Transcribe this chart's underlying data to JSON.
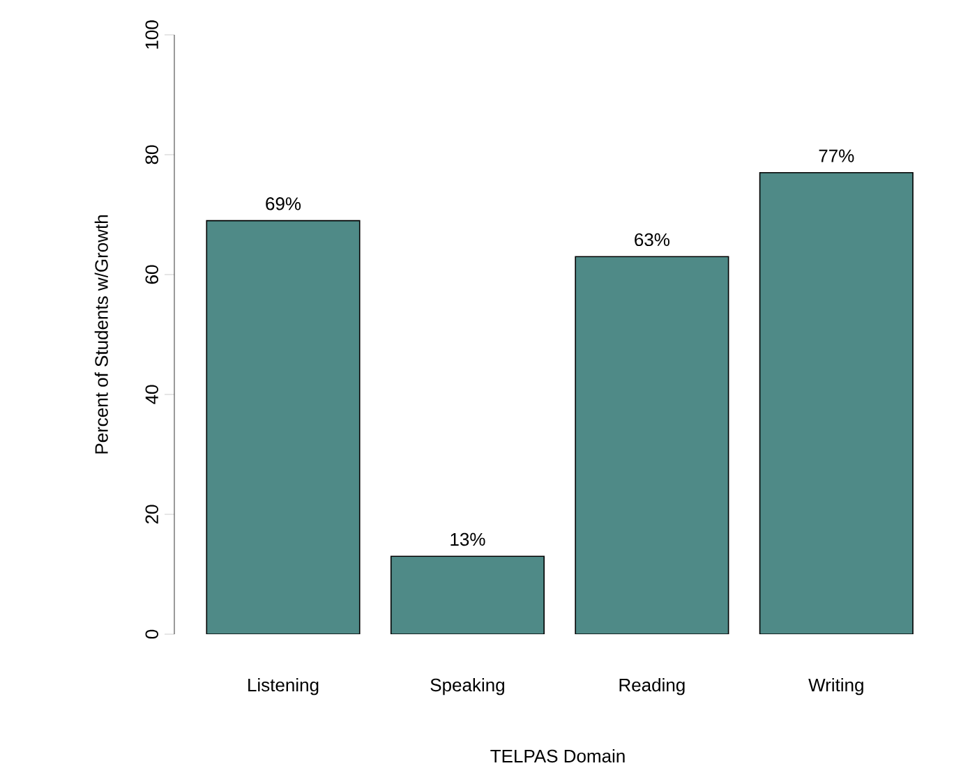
{
  "chart_data": {
    "type": "bar",
    "xlabel": "TELPAS Domain",
    "ylabel": "Percent of Students w/Growth",
    "categories": [
      "Listening",
      "Speaking",
      "Reading",
      "Writing"
    ],
    "values": [
      69,
      13,
      63,
      77
    ],
    "value_labels": [
      "69%",
      "13%",
      "63%",
      "77%"
    ],
    "color": "#4f8a87",
    "ylim": [
      0,
      100
    ],
    "yticks": [
      0,
      20,
      40,
      60,
      80,
      100
    ],
    "grid": false
  }
}
